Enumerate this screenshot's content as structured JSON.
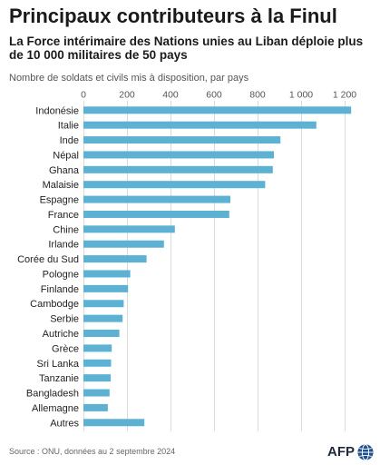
{
  "colors": {
    "bar": "#5db1d2",
    "grid": "#dadada",
    "brand": "#1d4f91"
  },
  "chart_data": {
    "type": "bar",
    "orientation": "horizontal",
    "title": "Principaux contributeurs à la Finul",
    "subtitle": "La Force intérimaire des Nations unies au Liban déploie plus de 10 000 militaires de 50 pays",
    "xlabel": "Nombre de soldats et civils mis à disposition, par pays",
    "categories": [
      "Indonésie",
      "Italie",
      "Inde",
      "Népal",
      "Ghana",
      "Malaisie",
      "Espagne",
      "France",
      "Chine",
      "Irlande",
      "Corée du Sud",
      "Pologne",
      "Finlande",
      "Cambodge",
      "Serbie",
      "Autriche",
      "Grèce",
      "Sri Lanka",
      "Tanzanie",
      "Bangladesh",
      "Allemagne",
      "Autres"
    ],
    "values": [
      1230,
      1070,
      905,
      875,
      870,
      835,
      675,
      670,
      420,
      370,
      290,
      215,
      205,
      185,
      180,
      165,
      130,
      127,
      125,
      120,
      112,
      280
    ],
    "xlim": [
      0,
      1200
    ],
    "xticks": [
      0,
      200,
      400,
      600,
      800,
      1000,
      1200
    ],
    "xtick_labels": [
      "0",
      "200",
      "400",
      "600",
      "800",
      "1 000",
      "1 200"
    ],
    "grid": true
  },
  "footer": {
    "source": "Source : ONU, données au 2 septembre 2024",
    "logo": {
      "text": "AFP",
      "icon": "afp-globe-icon"
    }
  }
}
